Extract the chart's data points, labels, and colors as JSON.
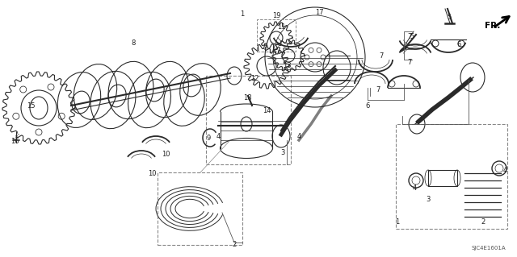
{
  "bg_color": "#ffffff",
  "line_color": "#2a2a2a",
  "diagram_code": "SJC4E1601A",
  "figsize": [
    6.4,
    3.19
  ],
  "dpi": 100
}
